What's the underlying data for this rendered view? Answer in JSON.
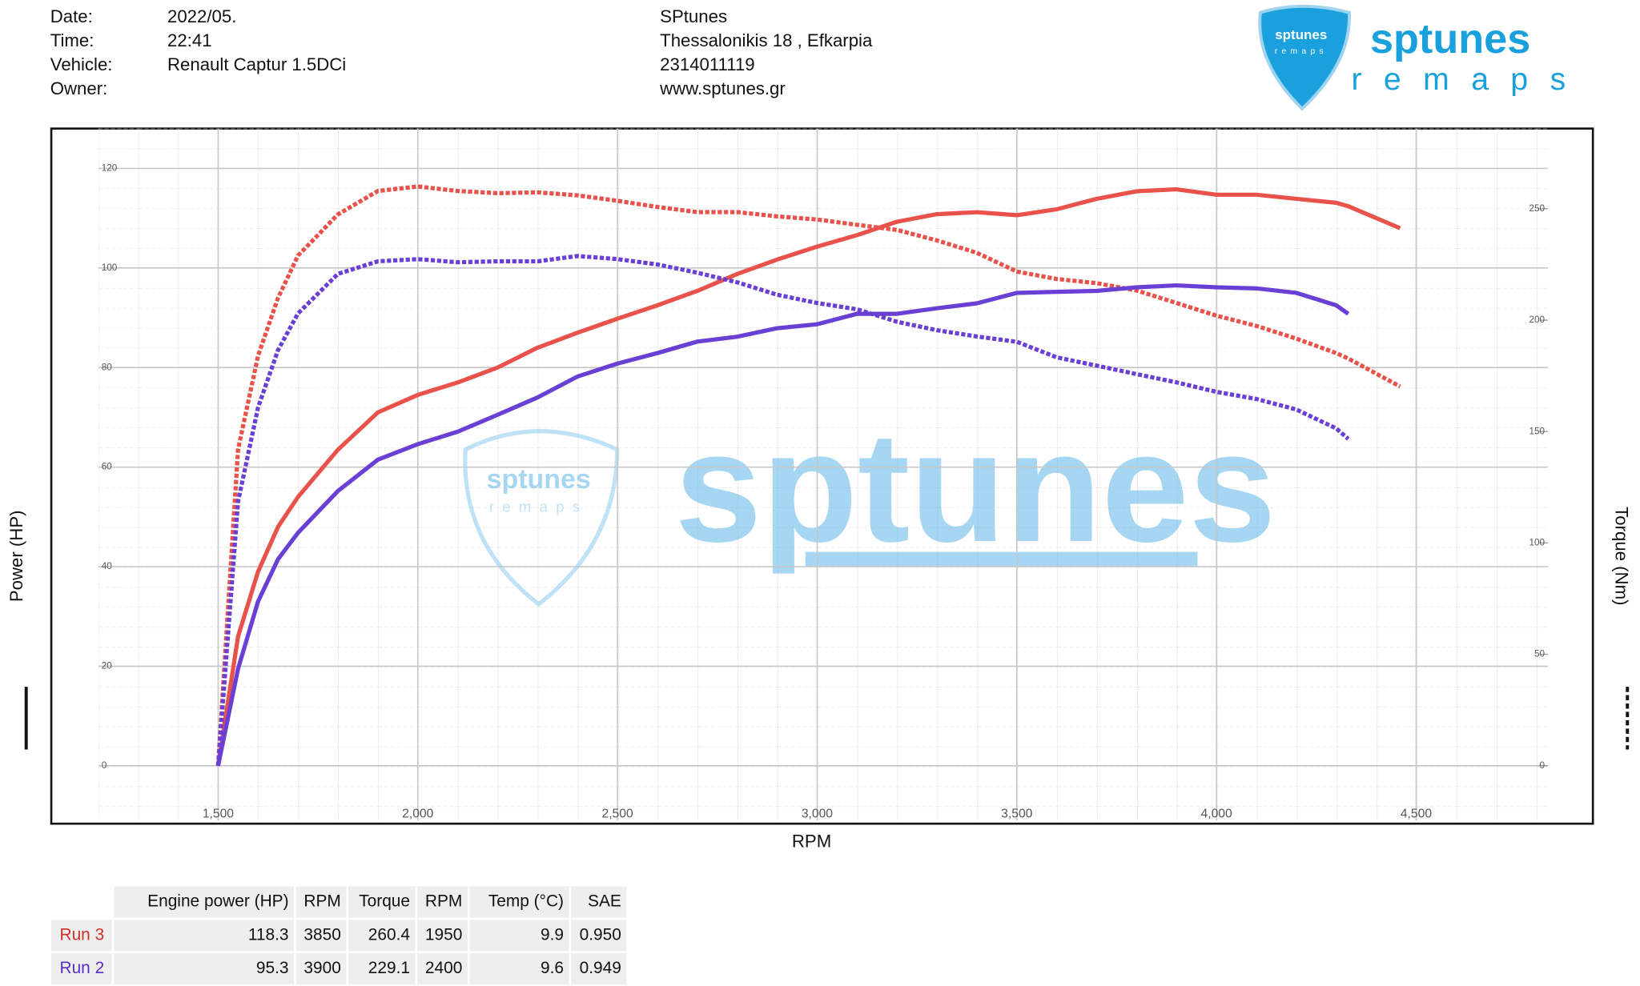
{
  "header": {
    "fields": [
      {
        "label": "Date:",
        "value": "2022/05."
      },
      {
        "label": "Time:",
        "value": "22:41"
      },
      {
        "label": "Vehicle:",
        "value": "Renault Captur 1.5DCi"
      },
      {
        "label": "Owner:"
      }
    ],
    "shop": [
      "SPtunes",
      "Thessalonikis 18 , Efkarpia",
      "2314011119",
      "www.sptunes.gr"
    ]
  },
  "branding": {
    "name": "sptunes",
    "tagline": "remaps"
  },
  "chart_data": {
    "type": "line",
    "x_label": "RPM",
    "y_label": "Power (HP)",
    "y2_label": "Torque (Nm)",
    "xlim": [
      1200,
      4830
    ],
    "ylim": [
      -11,
      128
    ],
    "y2lim": [
      -24.6,
      286
    ],
    "xticks": [
      {
        "value": 1500,
        "label": "1,500"
      },
      {
        "value": 2000,
        "label": "2,000"
      },
      {
        "value": 2500,
        "label": "2,500"
      },
      {
        "value": 3000,
        "label": "3,000"
      },
      {
        "value": 3500,
        "label": "3,500"
      },
      {
        "value": 4000,
        "label": "4,000"
      },
      {
        "value": 4500,
        "label": "4,500"
      }
    ],
    "yticks": [
      0,
      20,
      40,
      60,
      80,
      100,
      120
    ],
    "y2ticks": [
      0,
      50,
      100,
      150,
      200,
      250
    ],
    "grid": true,
    "x": [
      1500,
      1550,
      1600,
      1650,
      1700,
      1800,
      1900,
      2000,
      2100,
      2200,
      2300,
      2400,
      2500,
      2600,
      2700,
      2800,
      2900,
      3000,
      3100,
      3200,
      3300,
      3400,
      3500,
      3600,
      3700,
      3800,
      3900,
      4000,
      4100,
      4200,
      4300,
      4330,
      4460
    ],
    "series": [
      {
        "color": "#e8524a",
        "style": "solid",
        "axis": "y",
        "values": [
          0,
          26,
          39,
          48,
          54,
          63.5,
          71,
          74.5,
          77,
          80,
          84,
          87,
          89.8,
          92.5,
          95.4,
          98.8,
          101.7,
          104.3,
          106.6,
          109.3,
          110.8,
          111.2,
          110.6,
          111.8,
          113.9,
          115.4,
          115.8,
          114.7,
          114.7,
          113.9,
          113.1,
          112.4,
          108
        ]
      },
      {
        "color": "#e8524a",
        "style": "dotted",
        "axis": "y2",
        "values": [
          0,
          142,
          184,
          210,
          229,
          247.5,
          258,
          260,
          258,
          257,
          257.4,
          256,
          253.6,
          250.8,
          248.5,
          248.5,
          246.6,
          245.2,
          242.8,
          240.5,
          235.8,
          230.2,
          221.8,
          218.5,
          216.6,
          213.3,
          207.7,
          202,
          197.4,
          191.7,
          185.2,
          182.8,
          170.2
        ]
      },
      {
        "color": "#6a3fd6",
        "style": "solid",
        "axis": "y",
        "values": [
          0,
          19.5,
          33,
          41.5,
          46.8,
          55.2,
          61.5,
          64.6,
          67.1,
          70.5,
          74,
          78.2,
          80.8,
          82.9,
          85.2,
          86.2,
          87.9,
          88.7,
          90.8,
          90.8,
          91.9,
          92.9,
          95,
          95.2,
          95.4,
          96.1,
          96.5,
          96.1,
          95.9,
          95,
          92.5,
          90.8,
          null
        ]
      },
      {
        "color": "#6a3fd6",
        "style": "dotted",
        "axis": "y2",
        "values": [
          0,
          118.6,
          160.8,
          186.6,
          203,
          220.8,
          226.4,
          227.4,
          226,
          226.4,
          226.4,
          228.8,
          227.4,
          225,
          221.3,
          217,
          211.4,
          207.7,
          204.9,
          199.3,
          195.5,
          192.7,
          190.3,
          183.3,
          179.6,
          175.8,
          172.1,
          167.8,
          164.6,
          159.9,
          151.4,
          146.7,
          null
        ]
      }
    ]
  },
  "table": {
    "columns": [
      "Engine power (HP)",
      "RPM",
      "Torque",
      "RPM",
      "Temp (°C)",
      "SAE"
    ],
    "rows": [
      {
        "label": "Run 3",
        "color": "#d0302a",
        "cells": [
          118.3,
          3850,
          260.4,
          1950,
          9.9,
          "0.950"
        ]
      },
      {
        "label": "Run 2",
        "color": "#5a2fc6",
        "cells": [
          95.3,
          3900,
          229.1,
          2400,
          9.6,
          "0.949"
        ]
      }
    ]
  }
}
